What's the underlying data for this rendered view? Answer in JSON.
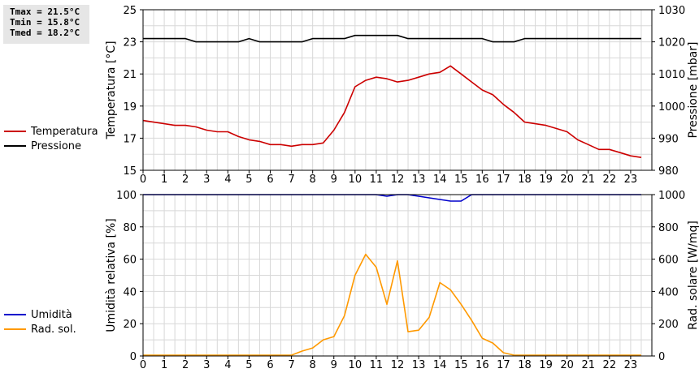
{
  "stats": {
    "tmax": "Tmax = 21.5°C",
    "tmin": "Tmin = 15.8°C",
    "tmed": "Tmed = 18.2°C"
  },
  "chart_data": [
    {
      "type": "line",
      "xlabel": "",
      "x_ticks": [
        "0",
        "1",
        "2",
        "3",
        "4",
        "5",
        "6",
        "7",
        "8",
        "9",
        "10",
        "11",
        "12",
        "13",
        "14",
        "15",
        "16",
        "17",
        "18",
        "19",
        "20",
        "21",
        "22",
        "23"
      ],
      "ylabel": "Temperatura [°C]",
      "ylim": [
        15,
        25
      ],
      "y_ticks": [
        15,
        17,
        19,
        21,
        23,
        25
      ],
      "y2label": "Pressione [mbar]",
      "y2lim": [
        980,
        1030
      ],
      "y2_ticks": [
        980,
        990,
        1000,
        1010,
        1020,
        1030
      ],
      "grid": true,
      "legend_position": "left",
      "series": [
        {
          "name": "Temperatura",
          "color": "#cc0000",
          "axis": "left",
          "x": [
            0,
            0.5,
            1,
            1.5,
            2,
            2.5,
            3,
            3.5,
            4,
            4.5,
            5,
            5.5,
            6,
            6.5,
            7,
            7.5,
            8,
            8.5,
            9,
            9.5,
            10,
            10.5,
            11,
            11.5,
            12,
            12.5,
            13,
            13.5,
            14,
            14.5,
            15,
            15.5,
            16,
            16.5,
            17,
            17.5,
            18,
            18.5,
            19,
            19.5,
            20,
            20.5,
            21,
            21.5,
            22,
            22.5,
            23,
            23.5
          ],
          "y": [
            18.1,
            18.0,
            17.9,
            17.8,
            17.8,
            17.7,
            17.5,
            17.4,
            17.4,
            17.1,
            16.9,
            16.8,
            16.6,
            16.6,
            16.5,
            16.6,
            16.6,
            16.7,
            17.5,
            18.6,
            20.2,
            20.6,
            20.8,
            20.7,
            20.5,
            20.6,
            20.8,
            21.0,
            21.1,
            21.5,
            21.0,
            20.5,
            20.0,
            19.7,
            19.1,
            18.6,
            18.0,
            17.9,
            17.8,
            17.6,
            17.4,
            16.9,
            16.6,
            16.3,
            16.3,
            16.1,
            15.9,
            15.8
          ]
        },
        {
          "name": "Pressione",
          "color": "#000000",
          "axis": "right",
          "x": [
            0,
            1,
            2,
            2.5,
            3,
            4,
            4.5,
            5,
            5.5,
            6,
            7,
            7.5,
            8,
            9,
            9.5,
            10,
            11,
            12,
            12.5,
            13,
            14,
            15,
            16,
            16.5,
            17,
            17.5,
            18,
            19,
            20,
            21,
            22,
            23,
            23.5
          ],
          "y": [
            1021,
            1021,
            1021,
            1020,
            1020,
            1020,
            1020,
            1021,
            1020,
            1020,
            1020,
            1020,
            1021,
            1021,
            1021,
            1022,
            1022,
            1022,
            1021,
            1021,
            1021,
            1021,
            1021,
            1020,
            1020,
            1020,
            1021,
            1021,
            1021,
            1021,
            1021,
            1021,
            1021
          ]
        }
      ]
    },
    {
      "type": "line",
      "xlabel": "",
      "x_ticks": [
        "0",
        "1",
        "2",
        "3",
        "4",
        "5",
        "6",
        "7",
        "8",
        "9",
        "10",
        "11",
        "12",
        "13",
        "14",
        "15",
        "16",
        "17",
        "18",
        "19",
        "20",
        "21",
        "22",
        "23"
      ],
      "ylabel": "Umidità relativa [%]",
      "ylim": [
        0,
        100
      ],
      "y_ticks": [
        0,
        20,
        40,
        60,
        80,
        100
      ],
      "y2label": "Rad. solare [W/mq]",
      "y2lim": [
        0,
        1000
      ],
      "y2_ticks": [
        0,
        200,
        400,
        600,
        800,
        1000
      ],
      "grid": true,
      "legend_position": "left",
      "series": [
        {
          "name": "Umidità",
          "color": "#0000cc",
          "axis": "left",
          "x": [
            0,
            1,
            2,
            3,
            4,
            5,
            6,
            7,
            8,
            9,
            10,
            11,
            11.5,
            12,
            12.5,
            13,
            13.5,
            14,
            14.5,
            15,
            15.5,
            16,
            17,
            18,
            19,
            20,
            21,
            22,
            23,
            23.5
          ],
          "y": [
            100,
            100,
            100,
            100,
            100,
            100,
            100,
            100,
            100,
            100,
            100,
            100,
            99,
            100,
            100,
            99,
            98,
            97,
            96,
            96,
            100,
            100,
            100,
            100,
            100,
            100,
            100,
            100,
            100,
            100
          ]
        },
        {
          "name": "Rad. sol.",
          "color": "#ff9900",
          "axis": "right",
          "x": [
            0,
            1,
            2,
            3,
            4,
            5,
            6,
            7,
            7.5,
            8,
            8.5,
            9,
            9.5,
            10,
            10.5,
            11,
            11.5,
            12,
            12.5,
            13,
            13.5,
            14,
            14.5,
            15,
            15.5,
            16,
            16.5,
            17,
            17.5,
            18,
            19,
            20,
            21,
            22,
            23,
            23.5
          ],
          "y": [
            5,
            5,
            5,
            5,
            5,
            5,
            5,
            5,
            30,
            50,
            100,
            120,
            250,
            500,
            630,
            550,
            320,
            590,
            150,
            160,
            240,
            455,
            410,
            320,
            220,
            110,
            80,
            20,
            5,
            5,
            5,
            5,
            5,
            5,
            5,
            5
          ]
        }
      ]
    }
  ]
}
